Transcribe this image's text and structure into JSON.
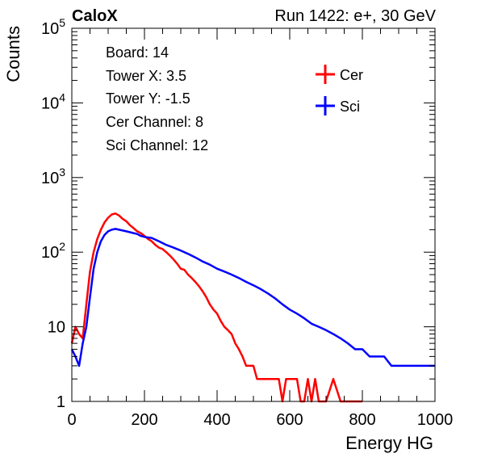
{
  "header": {
    "left": "CaloX",
    "right": "Run 1422: e+, 30 GeV"
  },
  "info": [
    "Board: 14",
    "Tower X: 3.5",
    "Tower Y: -1.5",
    "Cer Channel: 8",
    "Sci Channel: 12"
  ],
  "colors": {
    "cer": "#ff0000",
    "sci": "#0000ff"
  },
  "chart_data": {
    "type": "line",
    "title": "",
    "xlabel": "Energy HG",
    "ylabel": "Counts",
    "xlim": [
      0,
      1000
    ],
    "ylim": [
      1,
      100000
    ],
    "yscale": "log",
    "grid": false,
    "legend": "top-right",
    "x_ticks": [
      "0",
      "200",
      "400",
      "600",
      "800",
      "1000"
    ],
    "y_ticks": [
      "1",
      "10",
      "10^2",
      "10^3",
      "10^4",
      "10^5"
    ],
    "series": [
      {
        "name": "Cer",
        "x": [
          0,
          10,
          20,
          30,
          40,
          50,
          60,
          70,
          80,
          90,
          100,
          110,
          120,
          130,
          140,
          150,
          160,
          170,
          180,
          190,
          200,
          210,
          220,
          230,
          240,
          250,
          260,
          270,
          280,
          290,
          300,
          310,
          320,
          330,
          340,
          350,
          360,
          370,
          380,
          390,
          400,
          410,
          420,
          430,
          440,
          450,
          460,
          470,
          480,
          490,
          500,
          510,
          520,
          530,
          540,
          550,
          560,
          570,
          580,
          590,
          600,
          610,
          620,
          630,
          640,
          650,
          660,
          670,
          680,
          690,
          700,
          720,
          740,
          760,
          780,
          800
        ],
        "y": [
          6,
          10,
          8,
          7,
          20,
          55,
          100,
          150,
          200,
          250,
          290,
          320,
          330,
          310,
          280,
          260,
          230,
          210,
          190,
          180,
          165,
          150,
          140,
          125,
          115,
          110,
          100,
          90,
          80,
          70,
          60,
          58,
          50,
          45,
          40,
          35,
          30,
          25,
          20,
          17,
          15,
          12,
          10,
          9,
          8,
          6,
          5,
          4,
          3,
          3,
          3,
          2,
          2,
          2,
          2,
          2,
          2,
          2,
          1,
          2,
          2,
          2,
          2,
          1,
          1,
          2,
          1,
          2,
          1,
          1,
          1,
          2,
          1,
          1,
          1,
          1
        ]
      },
      {
        "name": "Sci",
        "x": [
          0,
          10,
          20,
          30,
          40,
          50,
          60,
          70,
          80,
          90,
          100,
          110,
          120,
          130,
          140,
          150,
          160,
          170,
          180,
          190,
          200,
          220,
          240,
          260,
          280,
          300,
          320,
          340,
          360,
          380,
          400,
          420,
          440,
          460,
          480,
          500,
          520,
          540,
          560,
          580,
          600,
          620,
          640,
          660,
          680,
          700,
          720,
          740,
          760,
          780,
          800,
          820,
          840,
          860,
          880,
          900,
          920,
          940,
          960,
          980,
          1000
        ],
        "y": [
          5,
          4,
          3,
          6,
          10,
          25,
          60,
          100,
          140,
          170,
          190,
          200,
          205,
          200,
          195,
          190,
          185,
          180,
          175,
          165,
          160,
          155,
          140,
          125,
          115,
          105,
          95,
          85,
          75,
          68,
          60,
          55,
          50,
          45,
          40,
          36,
          32,
          28,
          24,
          20,
          17,
          15,
          13,
          11,
          10,
          9,
          8,
          7,
          6,
          5,
          5,
          4,
          4,
          4,
          3,
          3,
          3,
          3,
          3,
          3,
          3
        ]
      }
    ]
  }
}
